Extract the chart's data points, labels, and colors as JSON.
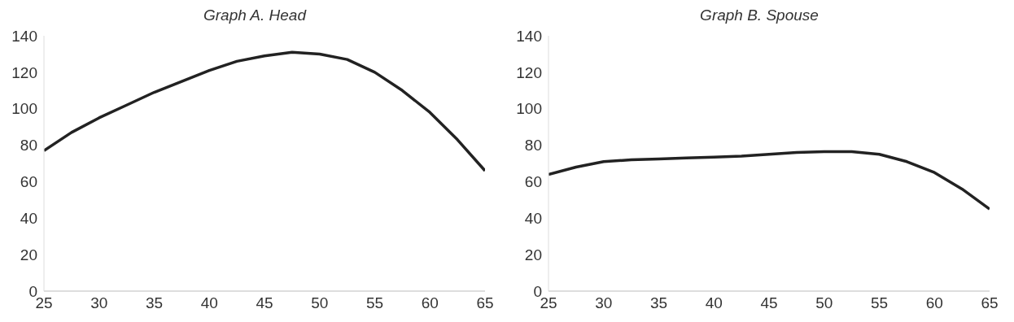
{
  "chart_data": [
    {
      "type": "line",
      "title": "Graph A. Head",
      "x": [
        25,
        27.5,
        30,
        32.5,
        35,
        37.5,
        40,
        42.5,
        45,
        47.5,
        50,
        52.5,
        55,
        57.5,
        60,
        62.5,
        65
      ],
      "series": [
        {
          "color": "#222222",
          "values": [
            77,
            87,
            95,
            102,
            109,
            115,
            121,
            126,
            129,
            131,
            130,
            127,
            120,
            110,
            98,
            83,
            66
          ]
        }
      ],
      "xlim": [
        25,
        65
      ],
      "xticks": [
        25,
        30,
        35,
        40,
        45,
        50,
        55,
        60,
        65
      ],
      "ylim": [
        0,
        140
      ],
      "yticks": [
        0,
        20,
        40,
        60,
        80,
        100,
        120,
        140
      ],
      "grid": false,
      "marker": "none",
      "line_style": "solid"
    },
    {
      "type": "line",
      "title": "Graph B. Spouse",
      "x": [
        25,
        27.5,
        30,
        32.5,
        35,
        37.5,
        40,
        42.5,
        45,
        47.5,
        50,
        52.5,
        55,
        57.5,
        60,
        62.5,
        65
      ],
      "series": [
        {
          "color": "#222222",
          "values": [
            64,
            68,
            71,
            72,
            72.5,
            73,
            73.5,
            74,
            75,
            76,
            76.5,
            76.5,
            75,
            71,
            65,
            56,
            45
          ]
        }
      ],
      "xlim": [
        25,
        65
      ],
      "xticks": [
        25,
        30,
        35,
        40,
        45,
        50,
        55,
        60,
        65
      ],
      "ylim": [
        0,
        140
      ],
      "yticks": [
        0,
        20,
        40,
        60,
        80,
        100,
        120,
        140
      ],
      "grid": false,
      "marker": "none",
      "line_style": "solid"
    }
  ]
}
